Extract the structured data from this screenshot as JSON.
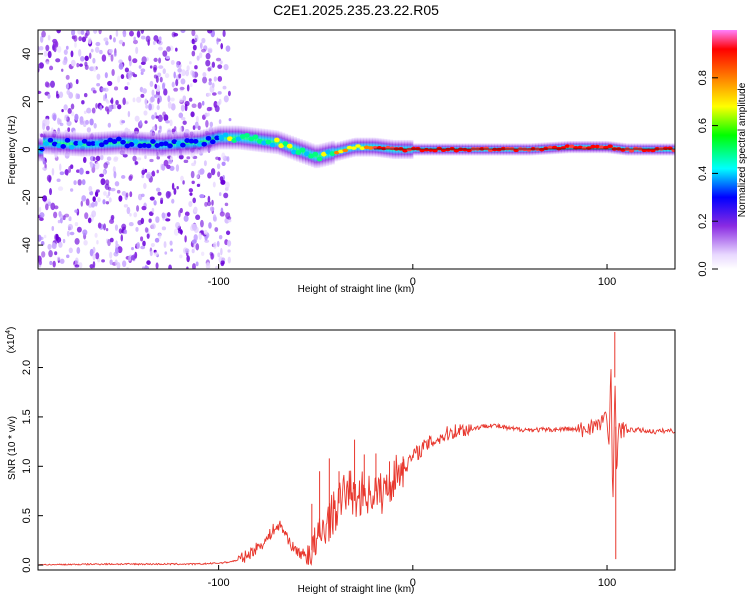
{
  "title": "C2E1.2025.235.23.22.R05",
  "chart_data": [
    {
      "type": "heatmap",
      "name": "spectrogram",
      "xlabel": "Height of straight line (km)",
      "ylabel": "Frequency (Hz)",
      "xlim": [
        -193,
        135
      ],
      "ylim": [
        -50,
        50
      ],
      "xticks": [
        -100,
        0,
        100
      ],
      "yticks": [
        -40,
        -20,
        0,
        20,
        40
      ],
      "colorbar": {
        "label": "Normalized spectral amplitude",
        "range": [
          0,
          1
        ],
        "ticks": [
          0.0,
          0.2,
          0.4,
          0.6,
          0.8
        ],
        "tick_labels": [
          "0.0",
          "0.2",
          "0.4",
          "0.6",
          "0.8"
        ],
        "colors": [
          "#ffffff",
          "#e8d8ff",
          "#8a2be2",
          "#0000ff",
          "#00ffff",
          "#00ff00",
          "#ffff00",
          "#ff8000",
          "#ff0000",
          "#ff80ff"
        ]
      },
      "ridge": {
        "x": [
          -190,
          -170,
          -150,
          -130,
          -110,
          -100,
          -90,
          -80,
          -70,
          -60,
          -50,
          -45,
          -40,
          -30,
          -20,
          -10,
          0,
          20,
          40,
          60,
          80,
          100,
          110,
          120,
          135
        ],
        "y": [
          3,
          2,
          3,
          2,
          3,
          5,
          5,
          4,
          3,
          0,
          -3,
          -2,
          -1,
          1,
          1,
          0,
          0,
          0,
          0,
          0,
          1,
          1,
          0,
          0,
          0
        ]
      },
      "noise_region": {
        "x_from": -193,
        "x_to": -100
      }
    },
    {
      "type": "line",
      "name": "snr",
      "xlabel": "Height of straight line (km)",
      "ylabel": "SNR (10 * v/v)",
      "y_exponent_label": "(x10",
      "y_exponent_value": "4",
      "xlim": [
        -193,
        135
      ],
      "ylim": [
        -0.05,
        2.38
      ],
      "xticks": [
        -100,
        0,
        100
      ],
      "yticks": [
        0.0,
        0.5,
        1.0,
        1.5,
        2.0
      ],
      "ytick_labels": [
        "0.0",
        "0.5",
        "1.0",
        "1.5",
        "2.0"
      ],
      "series": [
        {
          "name": "SNR",
          "color": "#e8372d",
          "x": [
            -193,
            -160,
            -130,
            -110,
            -100,
            -95,
            -90,
            -85,
            -80,
            -75,
            -72,
            -68,
            -65,
            -62,
            -58,
            -55,
            -52,
            -50,
            -45,
            -40,
            -36,
            -33,
            -30,
            -27,
            -25,
            -22,
            -20,
            -17,
            -15,
            -13,
            -11,
            -10,
            -8,
            -6,
            -4,
            -2,
            0,
            3,
            6,
            10,
            15,
            20,
            25,
            30,
            35,
            40,
            50,
            60,
            70,
            80,
            88,
            92,
            96,
            99,
            101,
            102,
            103,
            104,
            105,
            106,
            107,
            108,
            110,
            115,
            120,
            125,
            130,
            135
          ],
          "y": [
            0.0,
            0.01,
            0.01,
            0.01,
            0.02,
            0.03,
            0.05,
            0.1,
            0.18,
            0.26,
            0.36,
            0.4,
            0.3,
            0.18,
            0.12,
            0.1,
            0.15,
            0.2,
            0.4,
            0.55,
            0.7,
            0.8,
            0.65,
            0.72,
            0.75,
            0.7,
            0.76,
            0.72,
            0.74,
            0.8,
            0.83,
            0.9,
            0.92,
            1.0,
            1.0,
            1.05,
            1.1,
            1.15,
            1.2,
            1.25,
            1.3,
            1.35,
            1.37,
            1.38,
            1.4,
            1.42,
            1.38,
            1.37,
            1.37,
            1.38,
            1.36,
            1.42,
            1.4,
            1.55,
            1.2,
            2.05,
            0.6,
            1.9,
            0.9,
            1.5,
            1.3,
            1.38,
            1.36,
            1.37,
            1.36,
            1.35,
            1.36,
            1.36
          ],
          "spikes": [
            {
              "x": -52,
              "y": 0.62
            },
            {
              "x": -48,
              "y": 0.95
            },
            {
              "x": -43,
              "y": 1.08
            },
            {
              "x": -38,
              "y": 0.95
            },
            {
              "x": -30,
              "y": 1.27
            },
            {
              "x": -25,
              "y": 1.12
            },
            {
              "x": -19,
              "y": 1.13
            },
            {
              "x": -12,
              "y": 1.05
            },
            {
              "x": -5,
              "y": 1.1
            },
            {
              "x": 104,
              "y": 2.36
            },
            {
              "x": 104.5,
              "y": 0.06
            }
          ]
        }
      ]
    }
  ]
}
